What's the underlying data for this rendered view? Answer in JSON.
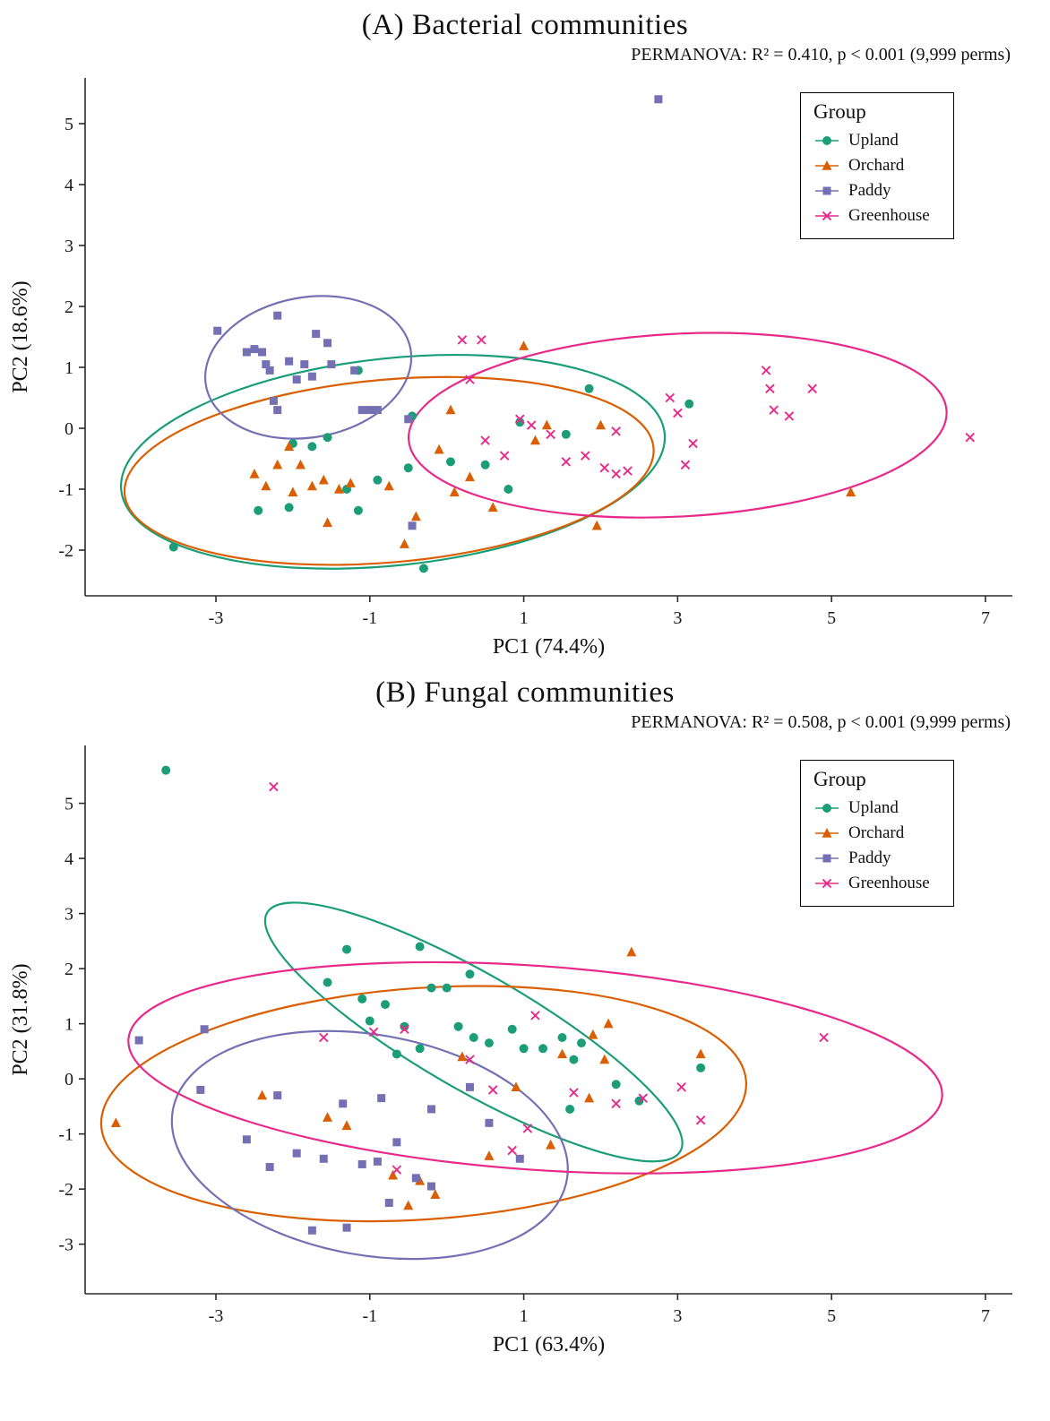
{
  "legend": {
    "title": "Group",
    "items": [
      {
        "label": "Upland",
        "color": "#1B9E77",
        "marker": "circle"
      },
      {
        "label": "Orchard",
        "color": "#D95F02",
        "marker": "triangle"
      },
      {
        "label": "Paddy",
        "color": "#7570B3",
        "marker": "square"
      },
      {
        "label": "Greenhouse",
        "color": "#E7298A",
        "marker": "x"
      }
    ]
  },
  "chart_data": [
    {
      "type": "scatter",
      "title": "(A) Bacterial communities",
      "subtitle": "PERMANOVA: R² = 0.410, p < 0.001  (9,999 perms)",
      "xlabel": "PC1 (74.4%)",
      "ylabel": "PC2 (18.6%)",
      "xlim": [
        -4.7,
        7.35
      ],
      "ylim": [
        -2.75,
        5.75
      ],
      "xticks": [
        -3,
        -1,
        1,
        3,
        5,
        7
      ],
      "yticks": [
        -2,
        -1,
        0,
        1,
        2,
        3,
        4,
        5
      ],
      "grid": false,
      "legend_position": "top-right-inside",
      "series": [
        {
          "name": "Upland",
          "color": "#1B9E77",
          "marker": "circle",
          "ellipse": {
            "cx": -0.7,
            "cy": -0.55,
            "rx": 3.55,
            "ry": 1.7,
            "rot": -6
          },
          "points": [
            [
              -3.55,
              -1.95
            ],
            [
              -2.45,
              -1.35
            ],
            [
              -2.05,
              -1.3
            ],
            [
              -2.0,
              -0.25
            ],
            [
              -1.75,
              -0.3
            ],
            [
              -1.55,
              -0.15
            ],
            [
              -1.3,
              -1.0
            ],
            [
              -1.15,
              -1.35
            ],
            [
              -1.15,
              0.95
            ],
            [
              -0.9,
              -0.85
            ],
            [
              -0.5,
              -0.65
            ],
            [
              -0.45,
              0.2
            ],
            [
              -0.3,
              -2.3
            ],
            [
              0.05,
              -0.55
            ],
            [
              0.5,
              -0.6
            ],
            [
              0.8,
              -1.0
            ],
            [
              0.95,
              0.1
            ],
            [
              1.55,
              -0.1
            ],
            [
              1.85,
              0.65
            ],
            [
              3.15,
              0.4
            ]
          ]
        },
        {
          "name": "Orchard",
          "color": "#D95F02",
          "marker": "triangle",
          "ellipse": {
            "cx": -0.75,
            "cy": -0.7,
            "rx": 3.45,
            "ry": 1.5,
            "rot": -5
          },
          "points": [
            [
              -2.5,
              -0.75
            ],
            [
              -2.35,
              -0.95
            ],
            [
              -2.2,
              -0.6
            ],
            [
              -2.05,
              -0.3
            ],
            [
              -2.0,
              -1.05
            ],
            [
              -1.9,
              -0.6
            ],
            [
              -1.75,
              -0.95
            ],
            [
              -1.6,
              -0.85
            ],
            [
              -1.55,
              -1.55
            ],
            [
              -1.4,
              -1.0
            ],
            [
              -1.25,
              -0.9
            ],
            [
              -0.75,
              -0.95
            ],
            [
              -0.55,
              -1.9
            ],
            [
              -0.4,
              -1.45
            ],
            [
              -0.1,
              -0.35
            ],
            [
              0.05,
              0.3
            ],
            [
              0.1,
              -1.05
            ],
            [
              0.3,
              -0.8
            ],
            [
              0.6,
              -1.3
            ],
            [
              1.0,
              1.35
            ],
            [
              1.15,
              -0.2
            ],
            [
              1.3,
              0.05
            ],
            [
              1.95,
              -1.6
            ],
            [
              2.0,
              0.05
            ],
            [
              5.25,
              -1.05
            ]
          ]
        },
        {
          "name": "Paddy",
          "color": "#7570B3",
          "marker": "square",
          "ellipse": {
            "cx": -1.8,
            "cy": 1.0,
            "rx": 1.35,
            "ry": 1.15,
            "rot": -10
          },
          "points": [
            [
              2.75,
              5.4
            ],
            [
              -2.98,
              1.6
            ],
            [
              -2.6,
              1.25
            ],
            [
              -2.5,
              1.3
            ],
            [
              -2.4,
              1.25
            ],
            [
              -2.35,
              1.05
            ],
            [
              -2.2,
              1.85
            ],
            [
              -2.3,
              0.95
            ],
            [
              -2.25,
              0.45
            ],
            [
              -2.2,
              0.3
            ],
            [
              -2.05,
              1.1
            ],
            [
              -1.95,
              0.8
            ],
            [
              -1.85,
              1.05
            ],
            [
              -1.75,
              0.85
            ],
            [
              -1.7,
              1.55
            ],
            [
              -1.55,
              1.4
            ],
            [
              -1.5,
              1.05
            ],
            [
              -1.2,
              0.95
            ],
            [
              -1.1,
              0.3
            ],
            [
              -1.0,
              0.3
            ],
            [
              -0.9,
              0.3
            ],
            [
              -0.5,
              0.15
            ],
            [
              -0.45,
              -1.6
            ]
          ]
        },
        {
          "name": "Greenhouse",
          "color": "#E7298A",
          "marker": "x",
          "ellipse": {
            "cx": 3.0,
            "cy": 0.05,
            "rx": 3.5,
            "ry": 1.5,
            "rot": -3
          },
          "points": [
            [
              0.2,
              1.45
            ],
            [
              0.45,
              1.45
            ],
            [
              0.3,
              0.8
            ],
            [
              0.5,
              -0.2
            ],
            [
              0.75,
              -0.45
            ],
            [
              0.95,
              0.15
            ],
            [
              1.1,
              0.05
            ],
            [
              1.35,
              -0.1
            ],
            [
              1.55,
              -0.55
            ],
            [
              1.8,
              -0.45
            ],
            [
              2.05,
              -0.65
            ],
            [
              2.2,
              -0.05
            ],
            [
              2.2,
              -0.75
            ],
            [
              2.35,
              -0.7
            ],
            [
              2.9,
              0.5
            ],
            [
              3.0,
              0.25
            ],
            [
              3.2,
              -0.25
            ],
            [
              3.1,
              -0.6
            ],
            [
              4.15,
              0.95
            ],
            [
              4.2,
              0.65
            ],
            [
              4.25,
              0.3
            ],
            [
              4.45,
              0.2
            ],
            [
              4.75,
              0.65
            ],
            [
              6.8,
              -0.15
            ]
          ]
        }
      ]
    },
    {
      "type": "scatter",
      "title": "(B) Fungal communities",
      "subtitle": "PERMANOVA: R² = 0.508, p < 0.001  (9,999 perms)",
      "xlabel": "PC1 (63.4%)",
      "ylabel": "PC2 (31.8%)",
      "xlim": [
        -4.7,
        7.35
      ],
      "ylim": [
        -3.9,
        6.05
      ],
      "xticks": [
        -3,
        -1,
        1,
        3,
        5,
        7
      ],
      "yticks": [
        -3,
        -2,
        -1,
        0,
        1,
        2,
        3,
        4,
        5
      ],
      "grid": false,
      "legend_position": "top-right-inside",
      "series": [
        {
          "name": "Upland",
          "color": "#1B9E77",
          "marker": "circle",
          "ellipse": {
            "cx": 0.35,
            "cy": 0.85,
            "rx": 3.1,
            "ry": 1.05,
            "rot": 30
          },
          "points": [
            [
              -3.65,
              5.6
            ],
            [
              -1.3,
              2.35
            ],
            [
              -0.35,
              2.4
            ],
            [
              -1.55,
              1.75
            ],
            [
              -1.1,
              1.45
            ],
            [
              -0.8,
              1.35
            ],
            [
              -1.0,
              1.05
            ],
            [
              -0.55,
              0.95
            ],
            [
              -0.2,
              1.65
            ],
            [
              0.0,
              1.65
            ],
            [
              0.3,
              1.9
            ],
            [
              0.15,
              0.95
            ],
            [
              0.35,
              0.75
            ],
            [
              0.55,
              0.65
            ],
            [
              -0.35,
              0.55
            ],
            [
              -0.65,
              0.45
            ],
            [
              0.85,
              0.9
            ],
            [
              1.0,
              0.55
            ],
            [
              1.25,
              0.55
            ],
            [
              1.5,
              0.75
            ],
            [
              1.65,
              0.35
            ],
            [
              1.75,
              0.65
            ],
            [
              2.2,
              -0.1
            ],
            [
              2.5,
              -0.4
            ],
            [
              1.6,
              -0.55
            ],
            [
              3.3,
              0.2
            ]
          ]
        },
        {
          "name": "Orchard",
          "color": "#D95F02",
          "marker": "triangle",
          "ellipse": {
            "cx": -0.3,
            "cy": -0.45,
            "rx": 4.2,
            "ry": 2.1,
            "rot": -4
          },
          "points": [
            [
              -4.3,
              -0.8
            ],
            [
              -2.4,
              -0.3
            ],
            [
              -1.55,
              -0.7
            ],
            [
              -1.3,
              -0.85
            ],
            [
              -0.7,
              -1.75
            ],
            [
              -0.5,
              -2.3
            ],
            [
              -0.35,
              -1.85
            ],
            [
              -0.15,
              -2.1
            ],
            [
              0.2,
              0.4
            ],
            [
              0.55,
              -1.4
            ],
            [
              0.9,
              -0.15
            ],
            [
              1.35,
              -1.2
            ],
            [
              1.5,
              0.45
            ],
            [
              1.85,
              -0.35
            ],
            [
              1.9,
              0.8
            ],
            [
              2.05,
              0.35
            ],
            [
              2.1,
              1.0
            ],
            [
              2.4,
              2.3
            ],
            [
              3.3,
              0.45
            ]
          ]
        },
        {
          "name": "Paddy",
          "color": "#7570B3",
          "marker": "square",
          "ellipse": {
            "cx": -1.0,
            "cy": -1.2,
            "rx": 2.6,
            "ry": 2.0,
            "rot": 10
          },
          "points": [
            [
              -4.0,
              0.7
            ],
            [
              -3.15,
              0.9
            ],
            [
              -3.2,
              -0.2
            ],
            [
              -2.6,
              -1.1
            ],
            [
              -2.2,
              -0.3
            ],
            [
              -2.3,
              -1.6
            ],
            [
              -1.95,
              -1.35
            ],
            [
              -1.75,
              -2.75
            ],
            [
              -1.6,
              -1.45
            ],
            [
              -1.35,
              -0.45
            ],
            [
              -1.3,
              -2.7
            ],
            [
              -1.1,
              -1.55
            ],
            [
              -0.9,
              -1.5
            ],
            [
              -0.85,
              -0.35
            ],
            [
              -0.75,
              -2.25
            ],
            [
              -0.65,
              -1.15
            ],
            [
              -0.4,
              -1.8
            ],
            [
              -0.2,
              -1.95
            ],
            [
              -0.2,
              -0.55
            ],
            [
              0.3,
              -0.15
            ],
            [
              0.55,
              -0.8
            ],
            [
              0.95,
              -1.45
            ]
          ]
        },
        {
          "name": "Greenhouse",
          "color": "#E7298A",
          "marker": "x",
          "ellipse": {
            "cx": 1.15,
            "cy": 0.2,
            "rx": 5.3,
            "ry": 1.85,
            "rot": 4
          },
          "points": [
            [
              -2.25,
              5.3
            ],
            [
              -1.6,
              0.75
            ],
            [
              -0.95,
              0.85
            ],
            [
              -0.55,
              0.9
            ],
            [
              -0.65,
              -1.65
            ],
            [
              0.3,
              0.35
            ],
            [
              0.6,
              -0.2
            ],
            [
              0.85,
              -1.3
            ],
            [
              1.05,
              -0.9
            ],
            [
              1.15,
              1.15
            ],
            [
              1.65,
              -0.25
            ],
            [
              2.2,
              -0.45
            ],
            [
              2.55,
              -0.35
            ],
            [
              3.05,
              -0.15
            ],
            [
              3.3,
              -0.75
            ],
            [
              4.9,
              0.75
            ]
          ]
        }
      ]
    }
  ]
}
